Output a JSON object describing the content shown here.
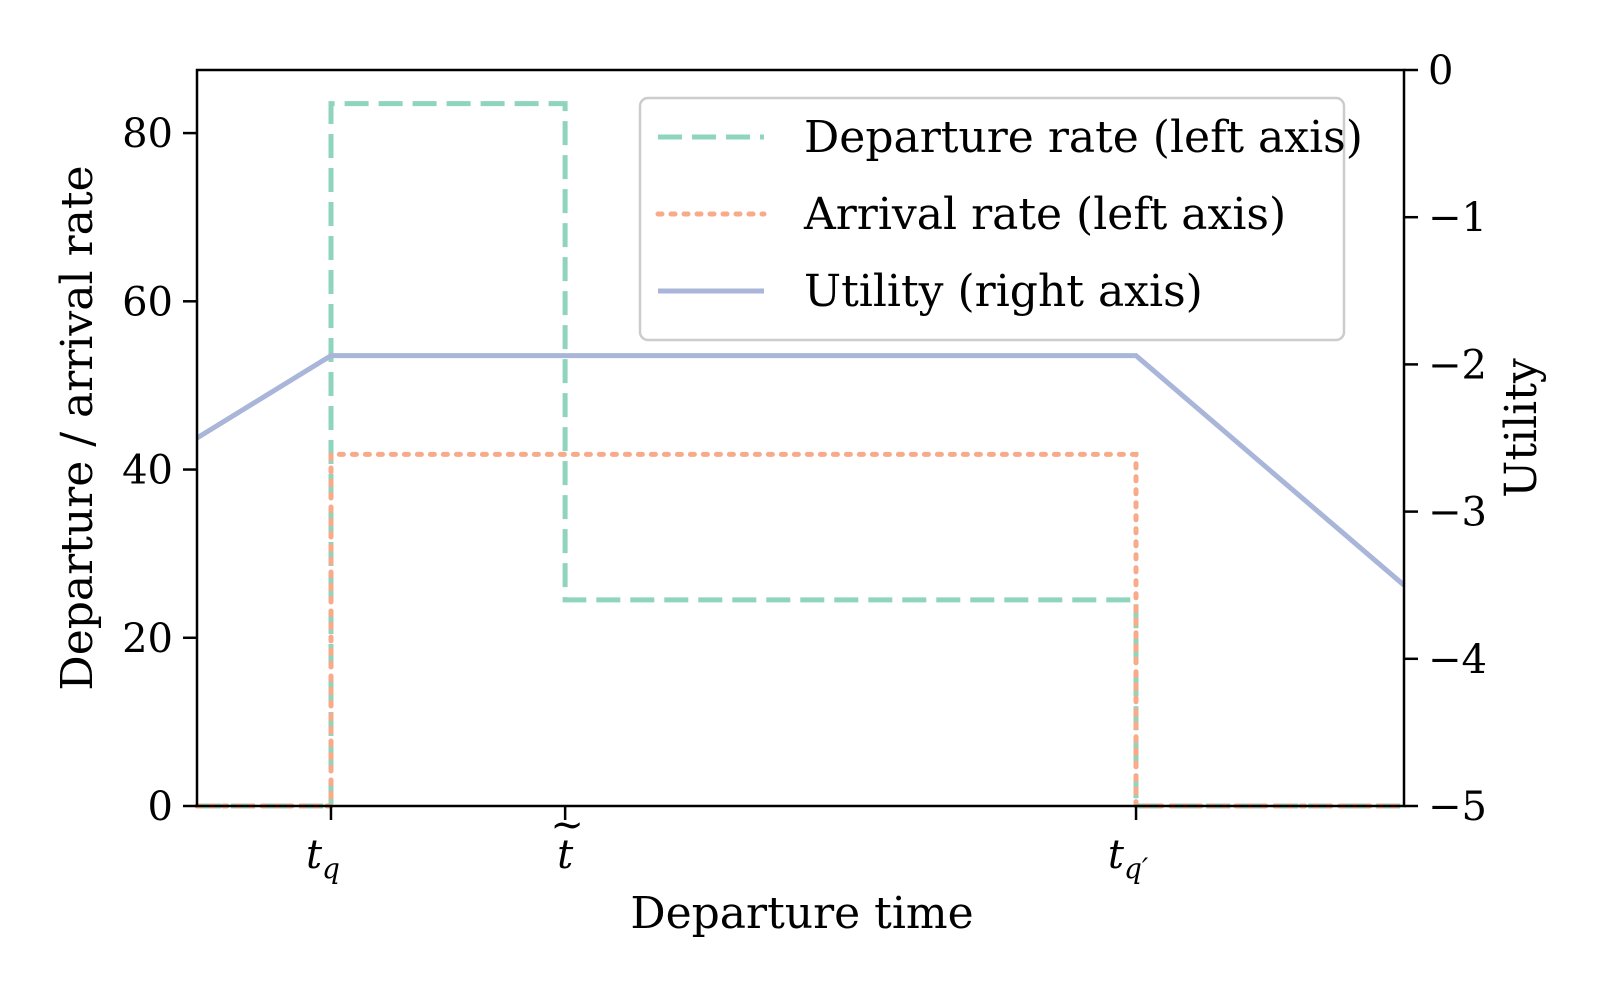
{
  "chart_data": {
    "type": "line",
    "xlabel": "Departure time",
    "ylabel_left": "Departure / arrival rate",
    "ylabel_right": "Utility",
    "x_range": [
      0,
      100
    ],
    "ylim_left": [
      0,
      87.5
    ],
    "ylim_right": [
      -5,
      0
    ],
    "x_ticks": [
      {
        "x": 11.1,
        "label": "t_q",
        "base": "t",
        "sub": "q",
        "tilde": false
      },
      {
        "x": 30.5,
        "label": "t~",
        "base": "t",
        "sub": "",
        "tilde": true
      },
      {
        "x": 77.8,
        "label": "t_q'",
        "base": "t",
        "sub": "q′",
        "tilde": false
      }
    ],
    "y_ticks_left": [
      {
        "value": 0,
        "label": "0"
      },
      {
        "value": 20,
        "label": "20"
      },
      {
        "value": 40,
        "label": "40"
      },
      {
        "value": 60,
        "label": "60"
      },
      {
        "value": 80,
        "label": "80"
      }
    ],
    "y_ticks_right": [
      {
        "value": 0,
        "label": "0"
      },
      {
        "value": -1,
        "label": "−1"
      },
      {
        "value": -2,
        "label": "−2"
      },
      {
        "value": -3,
        "label": "−3"
      },
      {
        "value": -4,
        "label": "−4"
      },
      {
        "value": -5,
        "label": "−5"
      }
    ],
    "legend_position": "top-right",
    "series": [
      {
        "name": "Departure rate (left axis)",
        "axis": "left",
        "style": "dashed",
        "color": "#8fd4bd",
        "points": [
          [
            0,
            0
          ],
          [
            11.1,
            0
          ],
          [
            11.1,
            83.5
          ],
          [
            30.5,
            83.5
          ],
          [
            30.5,
            24.5
          ],
          [
            77.8,
            24.5
          ],
          [
            77.8,
            0
          ],
          [
            100,
            0
          ]
        ]
      },
      {
        "name": "Arrival rate (left axis)",
        "axis": "left",
        "style": "dotted",
        "color": "#f7ab8a",
        "points": [
          [
            0,
            0
          ],
          [
            11.1,
            0
          ],
          [
            11.1,
            41.8
          ],
          [
            77.8,
            41.8
          ],
          [
            77.8,
            0
          ],
          [
            100,
            0
          ]
        ]
      },
      {
        "name": "Utility (right axis)",
        "axis": "right",
        "style": "solid",
        "color": "#a9b6da",
        "points": [
          [
            0,
            -2.5
          ],
          [
            11.1,
            -1.94
          ],
          [
            77.8,
            -1.94
          ],
          [
            100,
            -3.5
          ]
        ]
      }
    ]
  }
}
